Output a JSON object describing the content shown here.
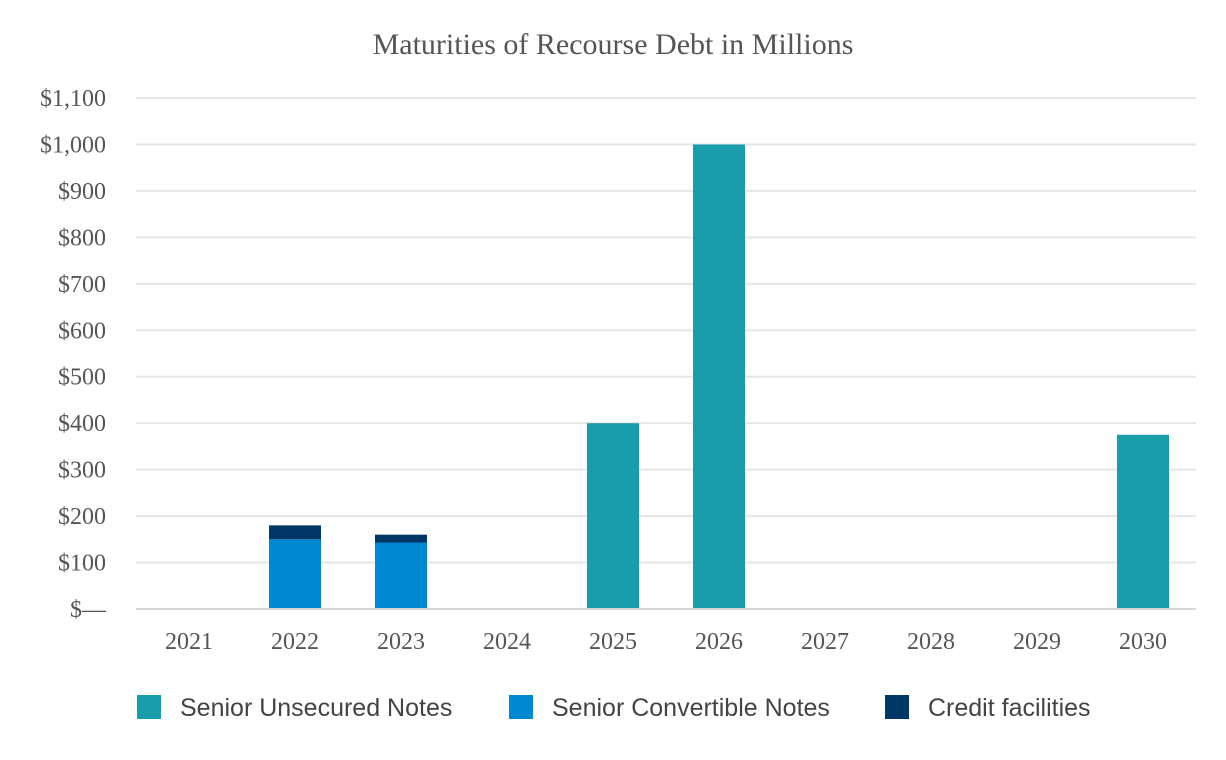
{
  "chart_data": {
    "type": "bar",
    "stacked": true,
    "title": "Maturities of Recourse Debt in Millions",
    "xlabel": "",
    "ylabel": "",
    "categories": [
      "2021",
      "2022",
      "2023",
      "2024",
      "2025",
      "2026",
      "2027",
      "2028",
      "2029",
      "2030"
    ],
    "ylim": [
      0,
      1100
    ],
    "y_ticks": [
      0,
      100,
      200,
      300,
      400,
      500,
      600,
      700,
      800,
      900,
      1000,
      1100
    ],
    "y_tick_labels": [
      "$—",
      "$100",
      "$200",
      "$300",
      "$400",
      "$500",
      "$600",
      "$700",
      "$800",
      "$900",
      "$1,000",
      "$1,100"
    ],
    "grid": true,
    "legend_position": "bottom",
    "series": [
      {
        "name": "Senior Unsecured Notes",
        "color": "#1a9daa",
        "values": [
          0,
          0,
          0,
          0,
          400,
          1000,
          0,
          0,
          0,
          375
        ]
      },
      {
        "name": "Senior Convertible Notes",
        "color": "#0088d1",
        "values": [
          0,
          150,
          143,
          0,
          0,
          0,
          0,
          0,
          0,
          0
        ]
      },
      {
        "name": "Credit facilities",
        "color": "#003766",
        "values": [
          0,
          30,
          17,
          0,
          0,
          0,
          0,
          0,
          0,
          0
        ]
      }
    ]
  }
}
